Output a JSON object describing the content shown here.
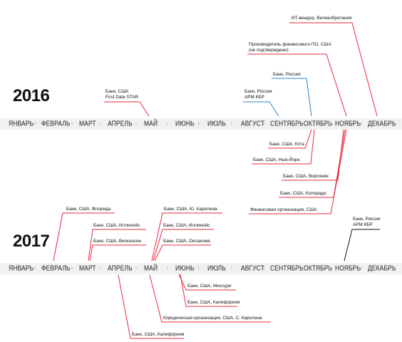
{
  "years": {
    "y2016": "2016",
    "y2017": "2017"
  },
  "months": [
    "ЯНВАРЬ",
    "ФЕВРАЛЬ",
    "МАРТ",
    "АПРЕЛЬ",
    "МАЙ",
    "ИЮНЬ",
    "ИЮЛЬ",
    "АВГУСТ",
    "СЕНТЯБРЬ",
    "ОКТЯБРЬ",
    "НОЯБРЬ",
    "ДЕКАБРЬ"
  ],
  "chevron": "›",
  "colors": {
    "red": "#e8283c",
    "blue": "#2a86c7",
    "black": "#111111",
    "band": "#f1f1f1"
  },
  "incidents_2016": [
    {
      "id": "it-vendor",
      "month": "ДЕКАБРЬ",
      "color": "red",
      "lines": [
        "ИТ-вендор, Великобритания"
      ]
    },
    {
      "id": "fin-software",
      "month": "НОЯБРЬ",
      "color": "red",
      "lines": [
        "Производитель финансового ПО, США",
        "(не подтверждено)"
      ]
    },
    {
      "id": "bank-russia-oct",
      "month": "ОКТЯБРЬ",
      "color": "blue",
      "lines": [
        "Банк, Россия"
      ]
    },
    {
      "id": "bank-russia-arm",
      "month": "СЕНТЯБРЬ",
      "color": "blue",
      "lines": [
        "Банк, Россия",
        "АРМ КБР"
      ]
    },
    {
      "id": "bank-usa-star",
      "month": "МАЙ",
      "color": "red",
      "lines": [
        "Банк, США",
        "First Data STAR"
      ]
    },
    {
      "id": "bank-usa-utah",
      "month": "ОКТЯБРЬ",
      "color": "red",
      "lines": [
        "Банк, США, Юта"
      ]
    },
    {
      "id": "bank-usa-ny",
      "month": "ОКТЯБРЬ",
      "color": "red",
      "lines": [
        "Банк, США, Нью-Йорк"
      ]
    },
    {
      "id": "bank-usa-virginia",
      "month": "НОЯБРЬ",
      "color": "red",
      "lines": [
        "Банк, США, Виргиния"
      ]
    },
    {
      "id": "bank-usa-colorado",
      "month": "НОЯБРЬ",
      "color": "red",
      "lines": [
        "Банк, США, Колорадо"
      ]
    },
    {
      "id": "fin-org-usa",
      "month": "НОЯБРЬ",
      "color": "red",
      "lines": [
        "Финансовая организация, США"
      ]
    }
  ],
  "incidents_2017": [
    {
      "id": "bank-usa-florida",
      "month": "ФЕВРАЛЬ",
      "color": "red",
      "lines": [
        "Банк, США, Флорида"
      ]
    },
    {
      "id": "bank-usa-illinois-mar",
      "month": "МАРТ",
      "color": "red",
      "lines": [
        "Банк, США, Иллинойс"
      ]
    },
    {
      "id": "bank-usa-wisconsin",
      "month": "МАРТ",
      "color": "red",
      "lines": [
        "Банк, США, Висконсин"
      ]
    },
    {
      "id": "bank-usa-sc",
      "month": "МАЙ",
      "color": "red",
      "lines": [
        "Банк, США, Ю. Каролина"
      ]
    },
    {
      "id": "bank-usa-illinois-may",
      "month": "МАЙ",
      "color": "red",
      "lines": [
        "Банк, США, Иллинойс"
      ]
    },
    {
      "id": "bank-usa-oklahoma",
      "month": "МАЙ",
      "color": "red",
      "lines": [
        "Банк, США, Оклахома"
      ]
    },
    {
      "id": "bank-russia-arm-2017",
      "month": "НОЯБРЬ",
      "color": "black",
      "lines": [
        "Банк, Россия",
        "АРМ КБР"
      ]
    },
    {
      "id": "bank-usa-missouri",
      "month": "ИЮНЬ",
      "color": "red",
      "lines": [
        "Банк, США, Миссури"
      ]
    },
    {
      "id": "bank-usa-california-jun",
      "month": "ИЮНЬ",
      "color": "red",
      "lines": [
        "Банк, США, Калифорния"
      ]
    },
    {
      "id": "legal-org-nc",
      "month": "МАЙ",
      "color": "red",
      "lines": [
        "Юридическая организация, США, С. Каролина"
      ]
    },
    {
      "id": "bank-usa-california-apr",
      "month": "АПРЕЛЬ",
      "color": "red",
      "lines": [
        "Банк, США, Калифорния"
      ]
    }
  ]
}
